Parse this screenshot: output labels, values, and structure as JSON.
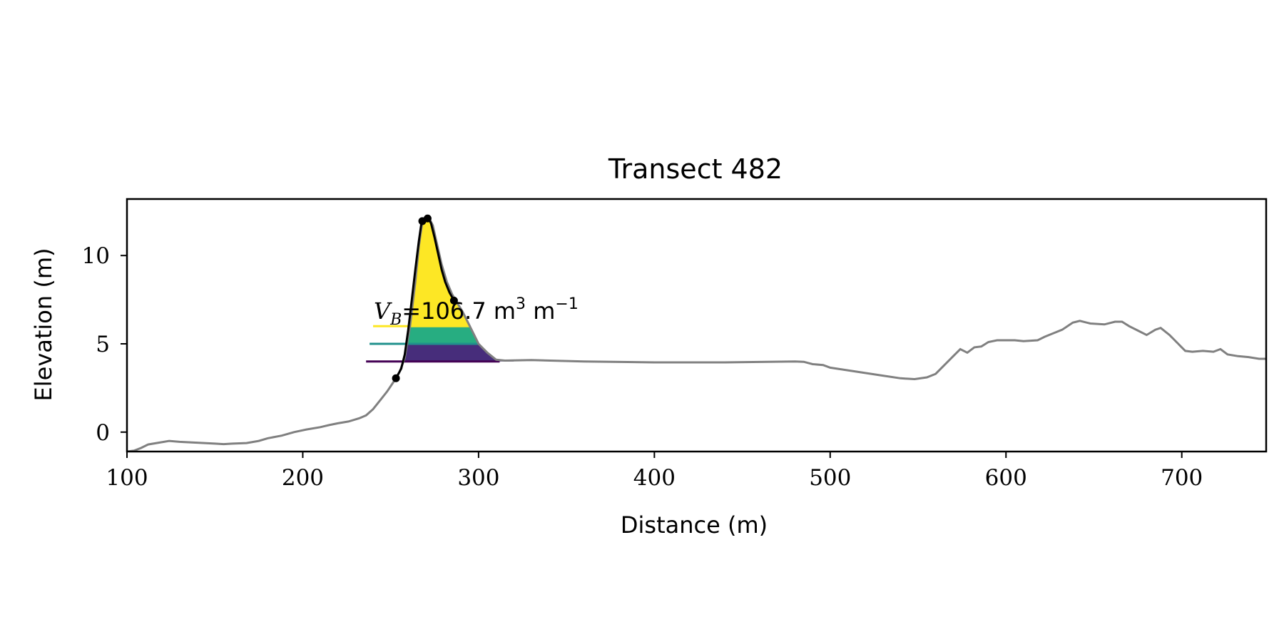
{
  "chart_data": {
    "type": "line",
    "title": "Transect 482",
    "xlabel": "Distance (m)",
    "ylabel": "Elevation (m)",
    "xlim": [
      100,
      748
    ],
    "ylim": [
      -1.1,
      13.2
    ],
    "xticks": [
      100,
      200,
      300,
      400,
      500,
      600,
      700
    ],
    "yticks": [
      0,
      5,
      10
    ],
    "grid": false,
    "legend": "none",
    "colors": {
      "profile": "#808080",
      "dune": "#000000",
      "level_high": "#fde725",
      "level_mid": "#21918c",
      "level_low": "#440154",
      "fill_high": "#fde725",
      "fill_mid": "#27ad81",
      "fill_low": "#472d7b"
    },
    "annotation": {
      "symbol": "V",
      "subscript": "B",
      "text": "=106.7 m",
      "unit_exp": "3",
      "unit_rest": " m",
      "unit_rest_exp": "−1"
    },
    "profile": [
      [
        100,
        -1.1
      ],
      [
        104,
        -1.05
      ],
      [
        108,
        -0.9
      ],
      [
        112,
        -0.7
      ],
      [
        118,
        -0.6
      ],
      [
        124,
        -0.5
      ],
      [
        130,
        -0.55
      ],
      [
        140,
        -0.6
      ],
      [
        150,
        -0.65
      ],
      [
        155,
        -0.68
      ],
      [
        160,
        -0.65
      ],
      [
        168,
        -0.62
      ],
      [
        175,
        -0.5
      ],
      [
        180,
        -0.35
      ],
      [
        188,
        -0.2
      ],
      [
        195,
        0.0
      ],
      [
        202,
        0.15
      ],
      [
        210,
        0.28
      ],
      [
        215,
        0.4
      ],
      [
        220,
        0.5
      ],
      [
        226,
        0.6
      ],
      [
        232,
        0.78
      ],
      [
        236,
        0.95
      ],
      [
        240,
        1.3
      ],
      [
        244,
        1.8
      ],
      [
        248,
        2.3
      ],
      [
        250,
        2.6
      ],
      [
        252,
        2.9
      ],
      [
        253,
        3.05
      ],
      [
        255,
        3.4
      ],
      [
        258,
        4.2
      ],
      [
        261,
        6.0
      ],
      [
        264,
        8.5
      ],
      [
        266,
        10.5
      ],
      [
        268,
        11.9
      ],
      [
        270,
        12.05
      ],
      [
        272,
        12.1
      ],
      [
        274,
        11.7
      ],
      [
        276,
        10.8
      ],
      [
        279,
        9.5
      ],
      [
        282,
        8.5
      ],
      [
        285,
        7.8
      ],
      [
        287,
        7.45
      ],
      [
        291,
        6.8
      ],
      [
        295,
        6.0
      ],
      [
        300,
        5.0
      ],
      [
        305,
        4.5
      ],
      [
        310,
        4.1
      ],
      [
        315,
        4.05
      ],
      [
        330,
        4.08
      ],
      [
        360,
        4.0
      ],
      [
        400,
        3.95
      ],
      [
        440,
        3.95
      ],
      [
        480,
        4.0
      ],
      [
        485,
        3.98
      ],
      [
        490,
        3.85
      ],
      [
        496,
        3.8
      ],
      [
        500,
        3.65
      ],
      [
        510,
        3.5
      ],
      [
        530,
        3.2
      ],
      [
        540,
        3.05
      ],
      [
        548,
        3.0
      ],
      [
        555,
        3.1
      ],
      [
        560,
        3.3
      ],
      [
        565,
        3.8
      ],
      [
        570,
        4.3
      ],
      [
        574,
        4.7
      ],
      [
        578,
        4.5
      ],
      [
        582,
        4.8
      ],
      [
        586,
        4.85
      ],
      [
        590,
        5.1
      ],
      [
        595,
        5.2
      ],
      [
        605,
        5.2
      ],
      [
        610,
        5.15
      ],
      [
        618,
        5.2
      ],
      [
        622,
        5.4
      ],
      [
        627,
        5.6
      ],
      [
        632,
        5.8
      ],
      [
        638,
        6.2
      ],
      [
        642,
        6.3
      ],
      [
        648,
        6.15
      ],
      [
        656,
        6.1
      ],
      [
        662,
        6.25
      ],
      [
        666,
        6.25
      ],
      [
        670,
        6.0
      ],
      [
        675,
        5.75
      ],
      [
        680,
        5.5
      ],
      [
        685,
        5.8
      ],
      [
        688,
        5.9
      ],
      [
        693,
        5.5
      ],
      [
        698,
        5.0
      ],
      [
        702,
        4.6
      ],
      [
        706,
        4.55
      ],
      [
        712,
        4.6
      ],
      [
        718,
        4.55
      ],
      [
        722,
        4.7
      ],
      [
        726,
        4.4
      ],
      [
        732,
        4.3
      ],
      [
        738,
        4.25
      ],
      [
        744,
        4.15
      ],
      [
        748,
        4.15
      ]
    ],
    "dune_curve": [
      [
        253,
        3.05
      ],
      [
        256,
        3.6
      ],
      [
        258,
        4.4
      ],
      [
        260,
        5.8
      ],
      [
        262,
        7.5
      ],
      [
        264,
        9.2
      ],
      [
        266,
        10.8
      ],
      [
        267.5,
        11.85
      ],
      [
        268.5,
        12.0
      ],
      [
        269.5,
        12.05
      ],
      [
        271.5,
        12.15
      ],
      [
        273,
        11.8
      ],
      [
        275,
        11.0
      ],
      [
        277,
        10.1
      ],
      [
        279,
        9.2
      ],
      [
        281,
        8.5
      ],
      [
        283.5,
        7.9
      ],
      [
        286,
        7.45
      ]
    ],
    "dune_points": [
      [
        253,
        3.05
      ],
      [
        268,
        11.95
      ],
      [
        271,
        12.1
      ],
      [
        286,
        7.45
      ]
    ],
    "levels": [
      {
        "y": 6.0,
        "x_start": 240,
        "x_end": 295
      },
      {
        "y": 5.0,
        "x_start": 238,
        "x_end": 300
      },
      {
        "y": 4.0,
        "x_start": 236,
        "x_end": 312
      }
    ]
  }
}
